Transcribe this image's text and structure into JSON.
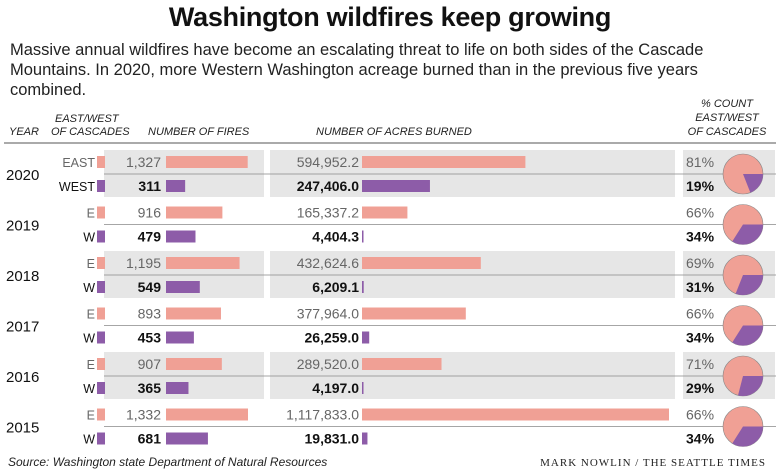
{
  "title": "Washington wildfires keep growing",
  "subtitle": "Massive annual wildfires have become an escalating threat to life on both sides of the Cascade Mountains. In 2020, more Western Washington acreage burned than in the previous five years combined.",
  "headers": {
    "year": "YEAR",
    "side_line1": "EAST/WEST",
    "side_line2": "OF CASCADES",
    "fires": "NUMBER OF FIRES",
    "acres": "NUMBER OF ACRES BURNED",
    "pct_line1": "% COUNT",
    "pct_line2": "EAST/WEST",
    "pct_line3": "OF CASCADES"
  },
  "source": "Source: Washington state Department of Natural Resources",
  "credit": "MARK NOWLIN / THE SEATTLE TIMES",
  "colors": {
    "east": "#f0a095",
    "west": "#8d5ca8",
    "band": "#e6e6e6"
  },
  "chart_data": {
    "type": "bar",
    "categories": [
      "2020",
      "2019",
      "2018",
      "2017",
      "2016",
      "2015"
    ],
    "rows": [
      {
        "year": "2020",
        "east": {
          "label": "EAST",
          "fires": 1327,
          "fires_text": "1,327",
          "acres": 594952.2,
          "acres_text": "594,952.2",
          "pct": 81,
          "pct_text": "81%"
        },
        "west": {
          "label": "WEST",
          "fires": 311,
          "fires_text": "311",
          "acres": 247406.0,
          "acres_text": "247,406.0",
          "pct": 19,
          "pct_text": "19%"
        }
      },
      {
        "year": "2019",
        "east": {
          "label": "E",
          "fires": 916,
          "fires_text": "916",
          "acres": 165337.2,
          "acres_text": "165,337.2",
          "pct": 66,
          "pct_text": "66%"
        },
        "west": {
          "label": "W",
          "fires": 479,
          "fires_text": "479",
          "acres": 4404.3,
          "acres_text": "4,404.3",
          "pct": 34,
          "pct_text": "34%"
        }
      },
      {
        "year": "2018",
        "east": {
          "label": "E",
          "fires": 1195,
          "fires_text": "1,195",
          "acres": 432624.6,
          "acres_text": "432,624.6",
          "pct": 69,
          "pct_text": "69%"
        },
        "west": {
          "label": "W",
          "fires": 549,
          "fires_text": "549",
          "acres": 6209.1,
          "acres_text": "6,209.1",
          "pct": 31,
          "pct_text": "31%"
        }
      },
      {
        "year": "2017",
        "east": {
          "label": "E",
          "fires": 893,
          "fires_text": "893",
          "acres": 377964.0,
          "acres_text": "377,964.0",
          "pct": 66,
          "pct_text": "66%"
        },
        "west": {
          "label": "W",
          "fires": 453,
          "fires_text": "453",
          "acres": 26259.0,
          "acres_text": "26,259.0",
          "pct": 34,
          "pct_text": "34%"
        }
      },
      {
        "year": "2016",
        "east": {
          "label": "E",
          "fires": 907,
          "fires_text": "907",
          "acres": 289520.0,
          "acres_text": "289,520.0",
          "pct": 71,
          "pct_text": "71%"
        },
        "west": {
          "label": "W",
          "fires": 365,
          "fires_text": "365",
          "acres": 4197.0,
          "acres_text": "4,197.0",
          "pct": 29,
          "pct_text": "29%"
        }
      },
      {
        "year": "2015",
        "east": {
          "label": "E",
          "fires": 1332,
          "fires_text": "1,332",
          "acres": 1117833.0,
          "acres_text": "1,117,833.0",
          "pct": 66,
          "pct_text": "66%"
        },
        "west": {
          "label": "W",
          "fires": 681,
          "fires_text": "681",
          "acres": 19831.0,
          "acres_text": "19,831.0",
          "pct": 34,
          "pct_text": "34%"
        }
      }
    ]
  }
}
